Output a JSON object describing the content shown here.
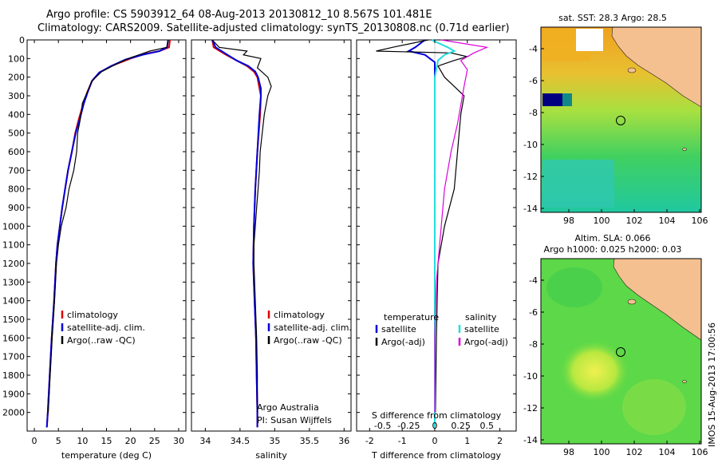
{
  "header": {
    "line1": "Argo profile: CS 5903912_64 08-Aug-2013 20130812_10 8.567S 101.481E",
    "line2": "Climatology: CARS2009. Satellite-adjusted climatology: synTS_20130808.nc (0.71d earlier)"
  },
  "colors": {
    "climatology": "#dd0000",
    "satellite": "#0000dd",
    "argo": "#000000",
    "sat_salt": "#22dddd",
    "argo_salt": "#dd00dd"
  },
  "chart_data": [
    {
      "type": "line",
      "name": "temperature-profile",
      "xlabel": "temperature (deg C)",
      "ylabel": "",
      "xlim": [
        -1.5,
        31.5
      ],
      "ylim": [
        0,
        2100
      ],
      "xticks": [
        0,
        5,
        10,
        15,
        20,
        25,
        30
      ],
      "yticks": [
        0,
        100,
        200,
        300,
        400,
        500,
        600,
        700,
        800,
        900,
        1000,
        1100,
        1200,
        1300,
        1400,
        1500,
        1600,
        1700,
        1800,
        1900,
        2000
      ],
      "legend": [
        "climatology",
        "satellite-adj. clim.",
        "Argo(..raw -QC)"
      ],
      "series": [
        {
          "name": "climatology",
          "points": [
            [
              28.2,
              0
            ],
            [
              28.0,
              40
            ],
            [
              26,
              60
            ],
            [
              23,
              75
            ],
            [
              20,
              100
            ],
            [
              16,
              140
            ],
            [
              13.5,
              175
            ],
            [
              12,
              220
            ],
            [
              11,
              280
            ],
            [
              10.2,
              340
            ],
            [
              9.3,
              420
            ],
            [
              8.5,
              500
            ],
            [
              7.8,
              600
            ],
            [
              7.0,
              700
            ],
            [
              6.4,
              800
            ],
            [
              5.8,
              900
            ],
            [
              5.3,
              1000
            ],
            [
              4.8,
              1100
            ],
            [
              4.5,
              1200
            ],
            [
              4.1,
              1400
            ],
            [
              3.6,
              1600
            ],
            [
              3.2,
              1800
            ],
            [
              2.8,
              2000
            ],
            [
              2.6,
              2080
            ]
          ]
        },
        {
          "name": "satellite",
          "points": [
            [
              27.8,
              0
            ],
            [
              27.6,
              40
            ],
            [
              26,
              60
            ],
            [
              22.5,
              80
            ],
            [
              19,
              105
            ],
            [
              16,
              140
            ],
            [
              13.5,
              175
            ],
            [
              12,
              220
            ],
            [
              11.1,
              280
            ],
            [
              10.3,
              340
            ],
            [
              9.5,
              420
            ],
            [
              8.6,
              500
            ],
            [
              7.8,
              600
            ],
            [
              7.0,
              700
            ],
            [
              6.4,
              800
            ],
            [
              5.8,
              900
            ],
            [
              5.3,
              1000
            ],
            [
              4.8,
              1100
            ],
            [
              4.5,
              1200
            ],
            [
              4.1,
              1400
            ],
            [
              3.6,
              1600
            ],
            [
              3.2,
              1800
            ],
            [
              2.8,
              2000
            ],
            [
              2.6,
              2080
            ]
          ]
        },
        {
          "name": "argo",
          "points": [
            [
              27.9,
              0
            ],
            [
              27.5,
              40
            ],
            [
              24,
              60
            ],
            [
              22,
              78
            ],
            [
              20,
              95
            ],
            [
              17,
              130
            ],
            [
              14,
              170
            ],
            [
              12,
              220
            ],
            [
              11,
              280
            ],
            [
              10,
              340
            ],
            [
              9.6,
              420
            ],
            [
              9,
              500
            ],
            [
              8.8,
              600
            ],
            [
              8.2,
              700
            ],
            [
              7.2,
              800
            ],
            [
              6.6,
              900
            ],
            [
              5.6,
              1000
            ],
            [
              5,
              1100
            ],
            [
              4.6,
              1200
            ],
            [
              4.2,
              1400
            ],
            [
              3.7,
              1600
            ],
            [
              3.3,
              1800
            ],
            [
              2.9,
              2000
            ]
          ]
        }
      ]
    },
    {
      "type": "line",
      "name": "salinity-profile",
      "xlabel": "salinity",
      "xlim": [
        33.8,
        36.1
      ],
      "ylim": [
        0,
        2100
      ],
      "xticks": [
        34,
        34.5,
        35,
        35.5,
        36
      ],
      "legend": [
        "climatology",
        "satellite-adj. clim.",
        "Argo(..raw -QC)"
      ],
      "notes": [
        "Argo Australia",
        "PI: Susan Wijffels"
      ],
      "series": [
        {
          "name": "climatology",
          "points": [
            [
              34.1,
              0
            ],
            [
              34.12,
              40
            ],
            [
              34.3,
              80
            ],
            [
              34.45,
              110
            ],
            [
              34.6,
              140
            ],
            [
              34.7,
              170
            ],
            [
              34.75,
              200
            ],
            [
              34.78,
              260
            ],
            [
              34.8,
              300
            ],
            [
              34.79,
              400
            ],
            [
              34.75,
              600
            ],
            [
              34.72,
              800
            ],
            [
              34.7,
              1000
            ],
            [
              34.69,
              1200
            ],
            [
              34.71,
              1400
            ],
            [
              34.73,
              1600
            ],
            [
              34.74,
              1800
            ],
            [
              34.75,
              2000
            ],
            [
              34.75,
              2080
            ]
          ]
        },
        {
          "name": "satellite",
          "points": [
            [
              34.1,
              0
            ],
            [
              34.15,
              40
            ],
            [
              34.32,
              80
            ],
            [
              34.45,
              110
            ],
            [
              34.62,
              140
            ],
            [
              34.72,
              170
            ],
            [
              34.76,
              200
            ],
            [
              34.8,
              260
            ],
            [
              34.8,
              300
            ],
            [
              34.78,
              400
            ],
            [
              34.75,
              600
            ],
            [
              34.72,
              800
            ],
            [
              34.7,
              1000
            ],
            [
              34.69,
              1200
            ],
            [
              34.71,
              1400
            ],
            [
              34.73,
              1600
            ],
            [
              34.74,
              1800
            ],
            [
              34.75,
              2000
            ],
            [
              34.75,
              2080
            ]
          ]
        },
        {
          "name": "argo",
          "points": [
            [
              34.1,
              0
            ],
            [
              34.2,
              40
            ],
            [
              34.6,
              60
            ],
            [
              34.55,
              80
            ],
            [
              34.8,
              100
            ],
            [
              34.75,
              150
            ],
            [
              34.9,
              200
            ],
            [
              34.95,
              250
            ],
            [
              34.9,
              300
            ],
            [
              34.85,
              400
            ],
            [
              34.82,
              500
            ],
            [
              34.79,
              600
            ],
            [
              34.78,
              700
            ],
            [
              34.76,
              800
            ],
            [
              34.74,
              900
            ],
            [
              34.72,
              1000
            ],
            [
              34.7,
              1100
            ],
            [
              34.7,
              1200
            ],
            [
              34.72,
              1400
            ],
            [
              34.74,
              1600
            ],
            [
              34.75,
              1800
            ],
            [
              34.75,
              2000
            ]
          ]
        }
      ]
    },
    {
      "type": "line",
      "name": "difference-profile",
      "xlabel": "T difference from climatology",
      "xlabel_top": "S difference from climatology",
      "xlim": [
        -2.4,
        2.5
      ],
      "ylim": [
        0,
        2100
      ],
      "xticks": [
        -2,
        -1,
        0,
        1,
        2
      ],
      "xticks_s": [
        "-0.5",
        "-0.25",
        "0",
        "0.25",
        "0.5"
      ],
      "xticks_s_pos": [
        -1.6,
        -0.8,
        0,
        0.8,
        1.6
      ],
      "legend_left_title": "temperature",
      "legend_right_title": "salinity",
      "legend": [
        "satellite",
        "Argo(-adj)",
        "satellite",
        "Argo(-adj)"
      ],
      "series": [
        {
          "name": "T satellite",
          "points": [
            [
              -0.3,
              0
            ],
            [
              -0.6,
              40
            ],
            [
              -0.8,
              60
            ],
            [
              -0.3,
              80
            ],
            [
              0,
              120
            ],
            [
              0,
              200
            ],
            [
              0,
              400
            ],
            [
              0,
              800
            ],
            [
              0,
              1200
            ],
            [
              0,
              1600
            ],
            [
              0,
              2080
            ]
          ]
        },
        {
          "name": "T argo",
          "points": [
            [
              -0.2,
              0
            ],
            [
              -1.3,
              40
            ],
            [
              -1.8,
              60
            ],
            [
              0.5,
              70
            ],
            [
              1.0,
              90
            ],
            [
              0.6,
              110
            ],
            [
              0.1,
              140
            ],
            [
              0.3,
              200
            ],
            [
              0.9,
              300
            ],
            [
              0.8,
              400
            ],
            [
              0.7,
              600
            ],
            [
              0.6,
              800
            ],
            [
              0.3,
              1000
            ],
            [
              0.1,
              1200
            ],
            [
              0.05,
              1600
            ],
            [
              0.02,
              2000
            ]
          ]
        },
        {
          "name": "S satellite",
          "points": [
            [
              -0.1,
              0
            ],
            [
              0.4,
              40
            ],
            [
              0.6,
              60
            ],
            [
              0.3,
              80
            ],
            [
              0.1,
              110
            ],
            [
              0,
              200
            ],
            [
              0,
              600
            ],
            [
              0,
              1000
            ],
            [
              0,
              1600
            ],
            [
              0,
              2080
            ]
          ]
        },
        {
          "name": "S argo",
          "points": [
            [
              0.2,
              0
            ],
            [
              1.6,
              40
            ],
            [
              1.2,
              70
            ],
            [
              0.8,
              110
            ],
            [
              1.0,
              160
            ],
            [
              0.9,
              250
            ],
            [
              0.8,
              350
            ],
            [
              0.7,
              450
            ],
            [
              0.5,
              600
            ],
            [
              0.3,
              800
            ],
            [
              0.2,
              1000
            ],
            [
              0.05,
              1300
            ],
            [
              0,
              1600
            ],
            [
              0,
              2000
            ]
          ]
        }
      ]
    }
  ],
  "map_top": {
    "title": "sat. SST: 28.3 Argo: 28.5",
    "xticks": [
      "98",
      "100",
      "102",
      "104",
      "106"
    ],
    "yticks": [
      "-4",
      "-6",
      "-8",
      "-10",
      "-12",
      "-14"
    ]
  },
  "map_bottom": {
    "title_line1": "Altim. SLA: 0.066",
    "title_line2": "Argo h1000: 0.025 h2000: 0.03",
    "xticks": [
      "98",
      "100",
      "102",
      "104",
      "106"
    ],
    "yticks": [
      "-4",
      "-6",
      "-8",
      "-10",
      "-12",
      "-14"
    ]
  },
  "footer": {
    "stamp": "IMOS 15-Aug-2013 17:00:56"
  }
}
